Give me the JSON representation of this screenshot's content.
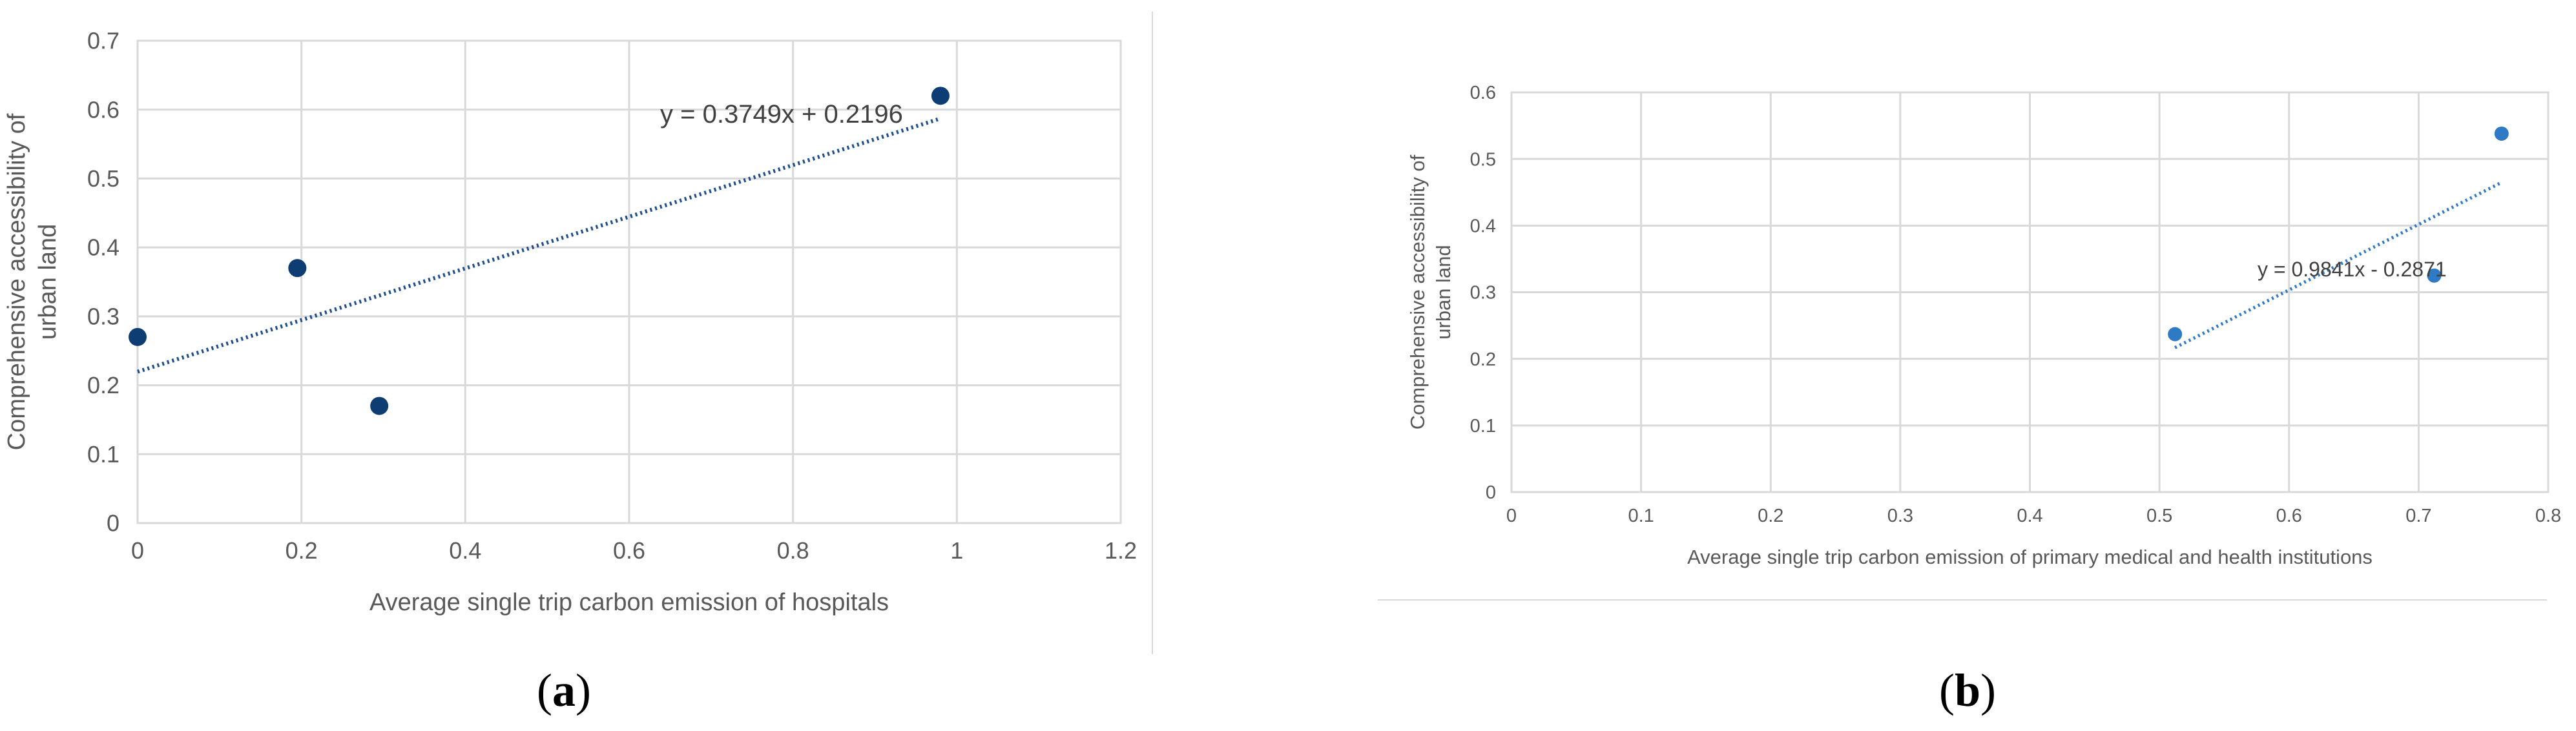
{
  "chart_data": [
    {
      "panel": "a",
      "type": "scatter",
      "title": "",
      "xlabel": "Average single trip carbon emission of hospitals",
      "ylabel": "Comprehensive accessibility of urban land",
      "xlim": [
        0,
        1.2
      ],
      "ylim": [
        0,
        0.7
      ],
      "xticks": [
        "0",
        "0.2",
        "0.4",
        "0.6",
        "0.8",
        "1",
        "1.2"
      ],
      "yticks": [
        "0",
        "0.1",
        "0.2",
        "0.3",
        "0.4",
        "0.5",
        "0.6",
        "0.7"
      ],
      "grid": true,
      "points": [
        {
          "x": 0.0,
          "y": 0.27
        },
        {
          "x": 0.195,
          "y": 0.37
        },
        {
          "x": 0.295,
          "y": 0.17
        },
        {
          "x": 0.98,
          "y": 0.62
        }
      ],
      "trendline": {
        "slope": 0.3749,
        "intercept": 0.2196,
        "x_range": [
          0,
          0.98
        ],
        "style": "dotted"
      },
      "equation": "y = 0.3749x + 0.2196",
      "marker_color": "#0d3d73",
      "trend_color": "#1f4e8c"
    },
    {
      "panel": "b",
      "type": "scatter",
      "title": "",
      "xlabel": "Average single trip carbon emission of primary medical and health institutions",
      "ylabel": "Comprehensive accessibility of urban land",
      "xlim": [
        0,
        0.8
      ],
      "ylim": [
        0,
        0.6
      ],
      "xticks": [
        "0",
        "0.1",
        "0.2",
        "0.3",
        "0.4",
        "0.5",
        "0.6",
        "0.7",
        "0.8"
      ],
      "yticks": [
        "0",
        "0.1",
        "0.2",
        "0.3",
        "0.4",
        "0.5",
        "0.6"
      ],
      "grid": true,
      "points": [
        {
          "x": 0.512,
          "y": 0.237
        },
        {
          "x": 0.712,
          "y": 0.325
        },
        {
          "x": 0.764,
          "y": 0.538
        }
      ],
      "trendline": {
        "slope": 0.9841,
        "intercept": -0.2871,
        "x_range": [
          0.512,
          0.764
        ],
        "style": "dotted"
      },
      "equation": "y = 0.9841x - 0.2871",
      "marker_color": "#2f7ac4",
      "trend_color": "#2f7ac4"
    }
  ],
  "panel_labels": {
    "a": "a",
    "b": "b"
  }
}
